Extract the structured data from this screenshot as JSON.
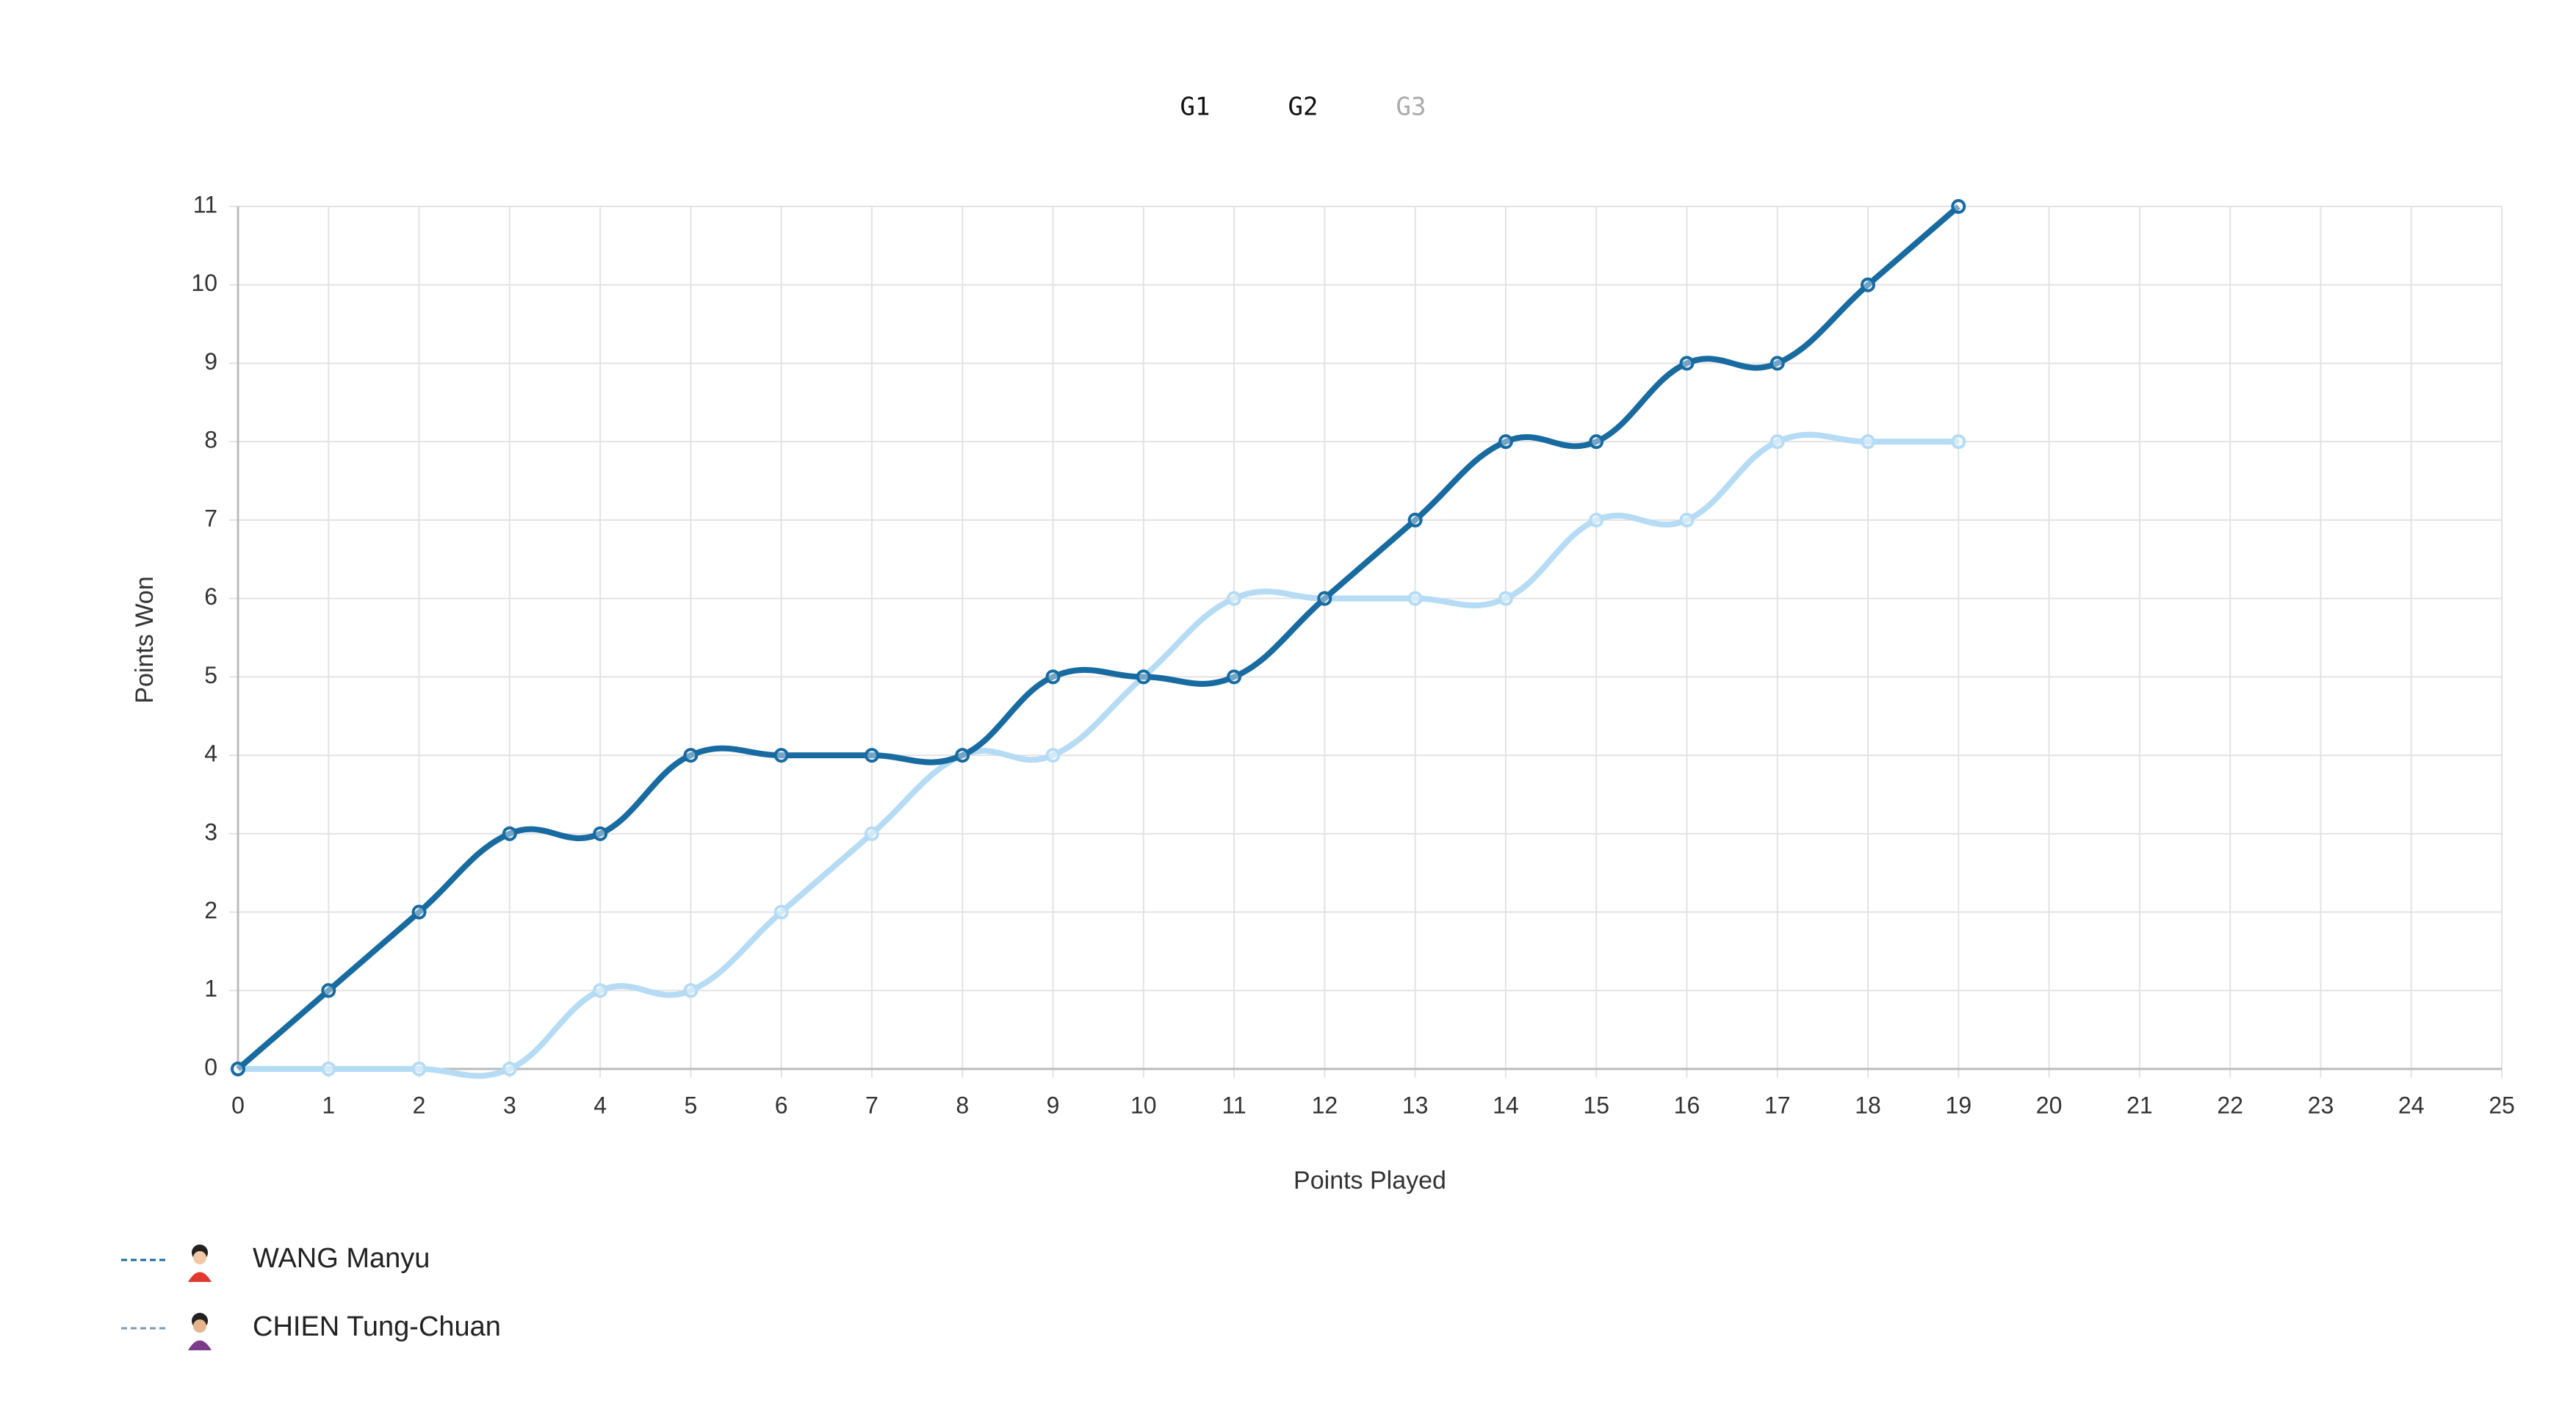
{
  "tabs": [
    "G1",
    "G2",
    "G3"
  ],
  "chart_data": {
    "type": "line",
    "x_label": "Points Played",
    "y_label": "Points Won",
    "x": [
      0,
      1,
      2,
      3,
      4,
      5,
      6,
      7,
      8,
      9,
      10,
      11,
      12,
      13,
      14,
      15,
      16,
      17,
      18,
      19
    ],
    "series": [
      {
        "name": "WANG Manyu",
        "color": "#176ba0",
        "values": [
          0,
          1,
          2,
          3,
          3,
          4,
          4,
          4,
          4,
          5,
          5,
          5,
          6,
          7,
          8,
          8,
          9,
          9,
          10,
          11
        ]
      },
      {
        "name": "CHIEN Tung-Chuan",
        "color": "#b5dcf4",
        "values": [
          0,
          0,
          0,
          0,
          1,
          1,
          2,
          3,
          4,
          4,
          5,
          6,
          6,
          6,
          6,
          7,
          7,
          8,
          8,
          8
        ]
      }
    ],
    "xlim": [
      0,
      25
    ],
    "xticks": [
      0,
      1,
      2,
      3,
      4,
      5,
      6,
      7,
      8,
      9,
      10,
      11,
      12,
      13,
      14,
      15,
      16,
      17,
      18,
      19,
      20,
      21,
      22,
      23,
      24,
      25
    ],
    "ylim": [
      0,
      11
    ],
    "yticks": [
      0,
      1,
      2,
      3,
      4,
      5,
      6,
      7,
      8,
      9,
      10,
      11
    ],
    "grid": true
  }
}
